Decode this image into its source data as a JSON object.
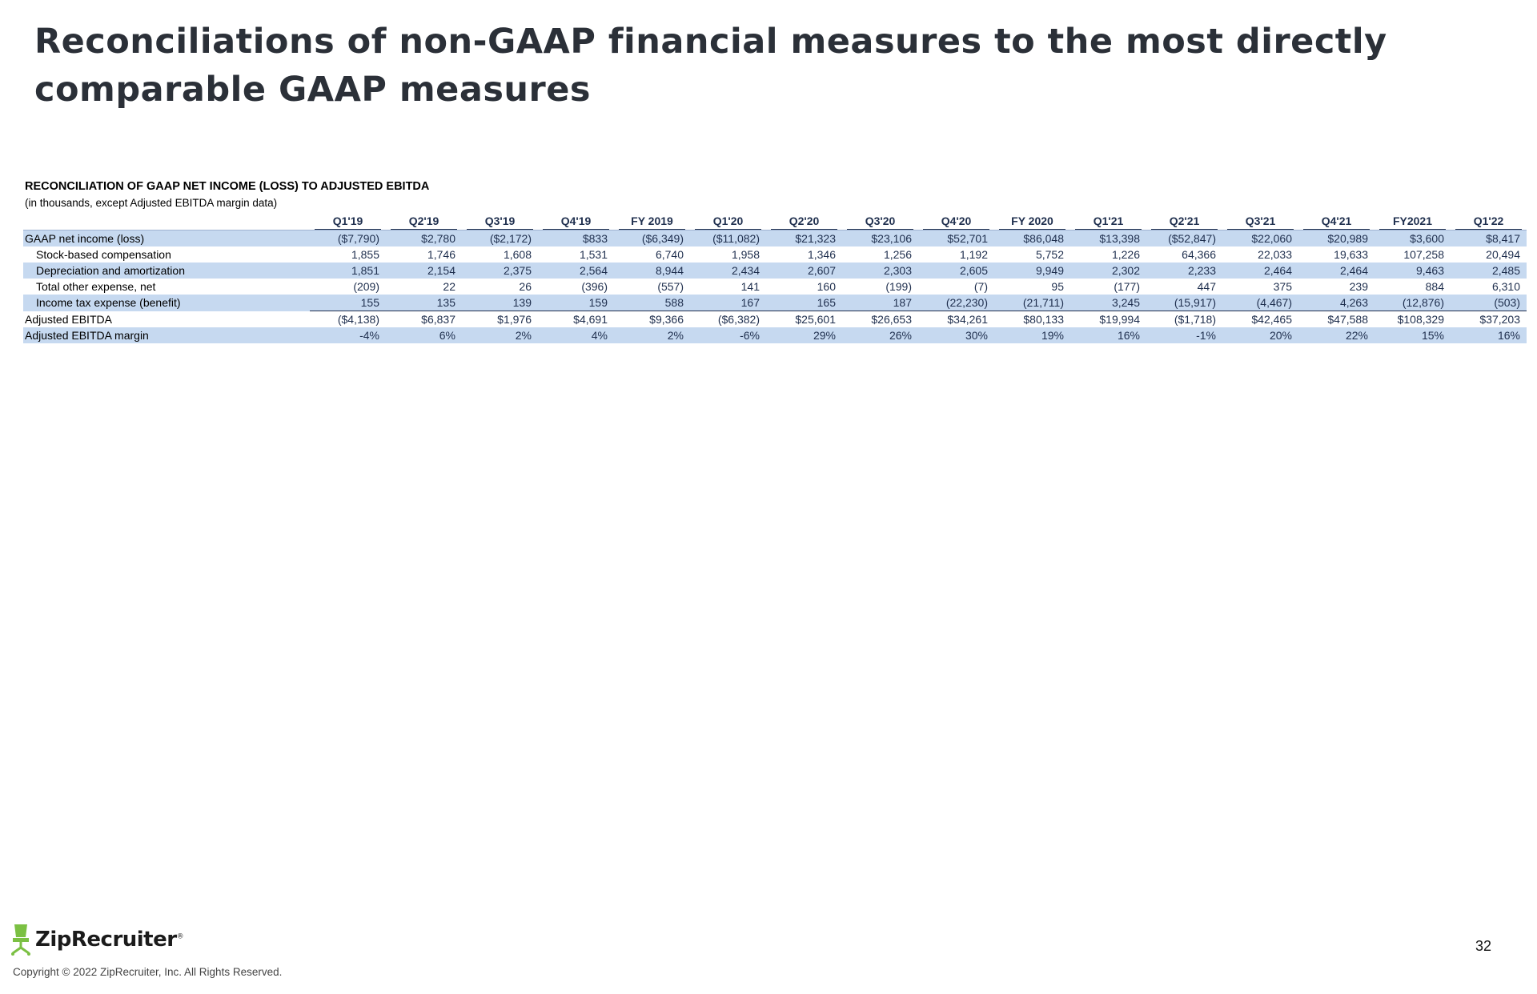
{
  "title": "Reconciliations of non-GAAP financial measures to the most directly comparable GAAP measures",
  "table": {
    "title": "RECONCILIATION OF GAAP NET INCOME (LOSS) TO ADJUSTED EBITDA",
    "subtitle": "(in thousands, except Adjusted EBITDA margin data)",
    "columns": [
      "Q1'19",
      "Q2'19",
      "Q3'19",
      "Q4'19",
      "FY 2019",
      "Q1'20",
      "Q2'20",
      "Q3'20",
      "Q4'20",
      "FY 2020",
      "Q1'21",
      "Q2'21",
      "Q3'21",
      "Q4'21",
      "FY2021",
      "Q1'22"
    ],
    "rows": [
      {
        "label": "GAAP net income (loss)",
        "values": [
          "($7,790)",
          "$2,780",
          "($2,172)",
          "$833",
          "($6,349)",
          "($11,082)",
          "$21,323",
          "$23,106",
          "$52,701",
          "$86,048",
          "$13,398",
          "($52,847)",
          "$22,060",
          "$20,989",
          "$3,600",
          "$8,417"
        ]
      },
      {
        "label": "Stock-based compensation",
        "values": [
          "1,855",
          "1,746",
          "1,608",
          "1,531",
          "6,740",
          "1,958",
          "1,346",
          "1,256",
          "1,192",
          "5,752",
          "1,226",
          "64,366",
          "22,033",
          "19,633",
          "107,258",
          "20,494"
        ]
      },
      {
        "label": "Depreciation and amortization",
        "values": [
          "1,851",
          "2,154",
          "2,375",
          "2,564",
          "8,944",
          "2,434",
          "2,607",
          "2,303",
          "2,605",
          "9,949",
          "2,302",
          "2,233",
          "2,464",
          "2,464",
          "9,463",
          "2,485"
        ]
      },
      {
        "label": "Total other expense, net",
        "values": [
          "(209)",
          "22",
          "26",
          "(396)",
          "(557)",
          "141",
          "160",
          "(199)",
          "(7)",
          "95",
          "(177)",
          "447",
          "375",
          "239",
          "884",
          "6,310"
        ]
      },
      {
        "label": "Income tax expense (benefit)",
        "values": [
          "155",
          "135",
          "139",
          "159",
          "588",
          "167",
          "165",
          "187",
          "(22,230)",
          "(21,711)",
          "3,245",
          "(15,917)",
          "(4,467)",
          "4,263",
          "(12,876)",
          "(503)"
        ]
      },
      {
        "label": "Adjusted EBITDA",
        "values": [
          "($4,138)",
          "$6,837",
          "$1,976",
          "$4,691",
          "$9,366",
          "($6,382)",
          "$25,601",
          "$26,653",
          "$34,261",
          "$80,133",
          "$19,994",
          "($1,718)",
          "$42,465",
          "$47,588",
          "$108,329",
          "$37,203"
        ]
      },
      {
        "label": "Adjusted EBITDA margin",
        "values": [
          "-4%",
          "6%",
          "2%",
          "4%",
          "2%",
          "-6%",
          "29%",
          "26%",
          "30%",
          "19%",
          "16%",
          "-1%",
          "20%",
          "22%",
          "15%",
          "16%"
        ]
      }
    ]
  },
  "footer": {
    "logo_text": "ZipRecruiter",
    "logo_mark": "®",
    "copyright": "Copyright © 2022 ZipRecruiter, Inc. All Rights Reserved.",
    "page_number": "32"
  },
  "colors": {
    "title": "#2b3038",
    "table_text": "#1f2f4e",
    "row_shade": "#c6d9f0",
    "logo_green": "#7bc043"
  },
  "icons": {
    "logo": "ziprecruiter-chair-icon"
  }
}
